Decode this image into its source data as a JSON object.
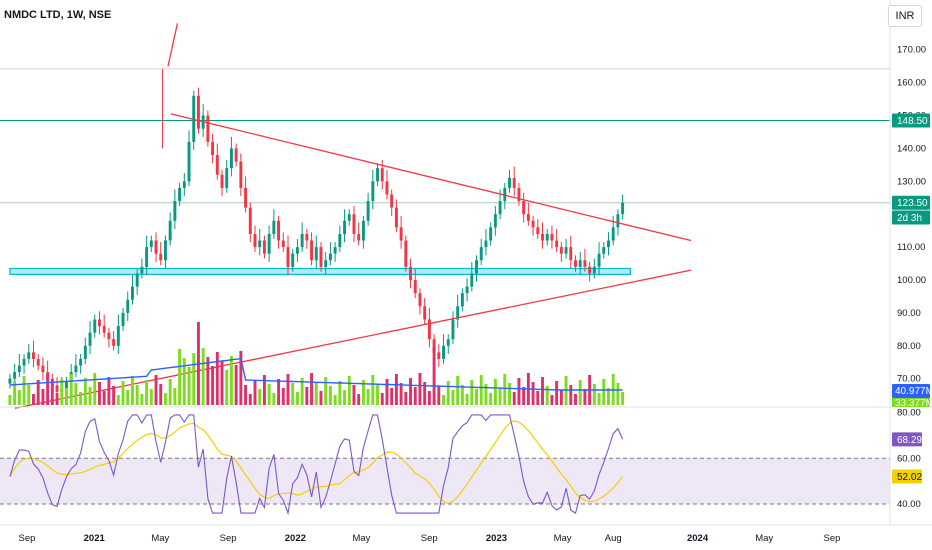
{
  "header": {
    "title": "NMDC LTD, 1W, NSE",
    "currency": "INR"
  },
  "chart_data": {
    "type": "candlestick",
    "price_pane": {
      "ylim": [
        62,
        176
      ],
      "ticks": [
        "170.00",
        "160.00",
        "150.00",
        "140.00",
        "130.00",
        "120.00",
        "110.00",
        "100.00",
        "90.00",
        "80.00",
        "70.00"
      ],
      "tick_values": [
        170,
        160,
        150,
        140,
        130,
        120,
        110,
        100,
        90,
        80,
        70
      ],
      "tags": [
        {
          "label": "148.50",
          "value": 148.5,
          "color": "#089981",
          "text_color": "#ffffff"
        },
        {
          "label": "123.50",
          "value": 123.5,
          "color": "#089981",
          "text_color": "#ffffff"
        },
        {
          "label": "2d 3h",
          "value": 119.0,
          "color": "#089981",
          "text_color": "#ffffff"
        }
      ],
      "horizontal_lines": [
        {
          "value": 148.5,
          "color": "#089981"
        },
        {
          "value": 123.5,
          "color": "#a5d6a7"
        },
        {
          "value": 164.2,
          "color": "#d1d4dc"
        }
      ],
      "support_zone": {
        "from_date": "2020-08-01",
        "to_date": "2023-09-01",
        "low": 101.7,
        "high": 103.5,
        "color": "#00bcd4"
      },
      "trendlines": [
        {
          "x1": "2021-05-20",
          "y1": 150.5,
          "x2": "2023-12-20",
          "y2": 112.0,
          "color": "#f23645"
        },
        {
          "x1": "2020-08-10",
          "y1": 61.0,
          "x2": "2023-12-20",
          "y2": 103.0,
          "color": "#f23645"
        },
        {
          "x1": "2021-05-15",
          "y1": 165.0,
          "x2": "2021-06-01",
          "y2": 178.0,
          "color": "#f23645"
        }
      ],
      "candles_weekly_close": [
        70,
        72,
        74,
        76,
        78,
        76,
        74,
        72,
        70,
        68,
        66,
        67,
        69,
        72,
        74,
        76,
        80,
        84,
        88,
        86,
        84,
        82,
        80,
        86,
        90,
        94,
        98,
        102,
        104,
        110,
        112,
        108,
        106,
        112,
        118,
        124,
        128,
        130,
        142,
        156,
        146,
        150,
        142,
        138,
        132,
        128,
        134,
        140,
        136,
        128,
        122,
        114,
        110,
        112,
        108,
        114,
        118,
        112,
        110,
        104,
        108,
        110,
        114,
        112,
        106,
        110,
        104,
        106,
        108,
        110,
        114,
        118,
        120,
        114,
        112,
        118,
        124,
        130,
        134,
        130,
        126,
        122,
        116,
        112,
        104,
        100,
        96,
        92,
        88,
        82,
        78,
        76,
        80,
        82,
        88,
        92,
        96,
        98,
        102,
        106,
        110,
        112,
        116,
        120,
        124,
        128,
        131,
        128,
        124,
        120,
        118,
        116,
        114,
        112,
        114,
        112,
        110,
        108,
        110,
        106,
        104,
        106,
        104,
        102,
        104,
        108,
        110,
        112,
        116,
        120,
        123.5
      ],
      "volume_series": {
        "label": "40.977M",
        "tag_color": "#2962ff"
      },
      "volume_sub_label": "33.377M"
    },
    "rsi_pane": {
      "ylim": [
        33,
        82
      ],
      "ticks": [
        "80.00",
        "60.00",
        "40.00"
      ],
      "tick_values": [
        80,
        60,
        40
      ],
      "band": [
        40,
        60
      ],
      "rsi_value": "68.29",
      "rsi_ma_value": "52.02",
      "rsi_color": "#7e57c2",
      "ma_color": "#f5d000"
    },
    "x_axis": {
      "labels": [
        "Sep",
        "2021",
        "May",
        "Sep",
        "2022",
        "May",
        "Sep",
        "2023",
        "May",
        "Aug",
        "2024",
        "May",
        "Sep"
      ],
      "dates": [
        "2020-09-01",
        "2021-01-01",
        "2021-05-01",
        "2021-09-01",
        "2022-01-01",
        "2022-05-01",
        "2022-09-01",
        "2023-01-01",
        "2023-05-01",
        "2023-08-01",
        "2024-01-01",
        "2024-05-01",
        "2024-09-01"
      ]
    }
  }
}
